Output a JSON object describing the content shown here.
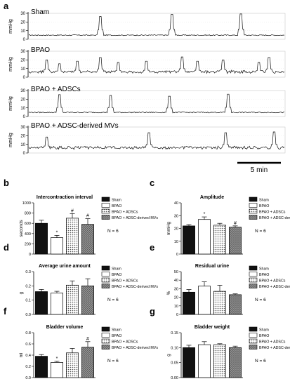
{
  "panel_a": {
    "letter": "a",
    "ylabel": "mmHg",
    "scale_bar_label": "5 min",
    "traces": [
      {
        "label": "Sham",
        "ticks": [
          "30",
          "20",
          "10",
          "0"
        ]
      },
      {
        "label": "BPAO",
        "ticks": [
          "30",
          "20",
          "10",
          "0"
        ]
      },
      {
        "label": "BPAO + ADSCs",
        "ticks": [
          "30",
          "20",
          "10",
          "0"
        ]
      },
      {
        "label": "BPAO + ADSC-derived MVs",
        "ticks": [
          "30",
          "20",
          "10",
          "0"
        ]
      }
    ]
  },
  "legend_entries": [
    "Sham",
    "BPAO",
    "BPAO + ADSCs",
    "BPAO + ADSC-derived MVs"
  ],
  "fills": [
    "#111111",
    "#ffffff",
    "#d0d0d0",
    "#8a8a8a"
  ],
  "patterns": [
    "solid",
    "solid",
    "dots",
    "crosshatch"
  ],
  "chart_data": [
    {
      "type": "bar",
      "panel": "b",
      "title": "Intercontraction interval",
      "ylabel": "seconds",
      "categories": [
        "Sham",
        "BPAO",
        "BPAO + ADSCs",
        "BPAO + ADSC-derived MVs"
      ],
      "values": [
        600,
        320,
        700,
        580
      ],
      "errors": [
        60,
        45,
        90,
        110
      ],
      "ylim": [
        0,
        1000
      ],
      "yticks": [
        "0",
        "200",
        "400",
        "600",
        "800",
        "1000"
      ],
      "markers": [
        "",
        "*",
        "#",
        "#"
      ],
      "n_label": "N = 6"
    },
    {
      "type": "bar",
      "panel": "c",
      "title": "Amplitude",
      "ylabel": "mmHg",
      "categories": [
        "Sham",
        "BPAO",
        "BPAO + ADSCs",
        "BPAO + ADSC-derived MVs"
      ],
      "values": [
        22,
        27,
        22.5,
        21
      ],
      "errors": [
        1,
        2,
        1.5,
        1
      ],
      "ylim": [
        0,
        40
      ],
      "yticks": [
        "0",
        "10",
        "20",
        "30",
        "40"
      ],
      "markers": [
        "",
        "*",
        "",
        "#"
      ],
      "n_label": "N = 6"
    },
    {
      "type": "bar",
      "panel": "d",
      "title": "Average urine amount",
      "ylabel": "g",
      "categories": [
        "Sham",
        "BPAO",
        "BPAO + ADSCs",
        "BPAO + ADSC-derived MVs"
      ],
      "values": [
        0.16,
        0.15,
        0.205,
        0.2
      ],
      "errors": [
        0.015,
        0.012,
        0.03,
        0.05
      ],
      "ylim": [
        0,
        0.3
      ],
      "yticks": [
        "0.0",
        "0.1",
        "0.2",
        "0.3"
      ],
      "markers": [
        "",
        "",
        "",
        ""
      ],
      "n_label": "N = 6"
    },
    {
      "type": "bar",
      "panel": "e",
      "title": "Residual urine",
      "ylabel": "%",
      "categories": [
        "Sham",
        "BPAO",
        "BPAO + ADSCs",
        "BPAO + ADSC-derived MVs"
      ],
      "values": [
        26,
        33,
        27,
        23
      ],
      "errors": [
        3,
        5,
        7,
        1
      ],
      "ylim": [
        0,
        50
      ],
      "yticks": [
        "0",
        "10",
        "20",
        "30",
        "40",
        "50"
      ],
      "markers": [
        "",
        "",
        "",
        ""
      ],
      "n_label": "N = 6"
    },
    {
      "type": "bar",
      "panel": "f",
      "title": "Bladder volume",
      "ylabel": "ml",
      "categories": [
        "Sham",
        "BPAO",
        "BPAO + ADSCs",
        "BPAO + ADSC-derived MVs"
      ],
      "values": [
        0.38,
        0.27,
        0.44,
        0.54
      ],
      "errors": [
        0.03,
        0.02,
        0.08,
        0.1
      ],
      "ylim": [
        0,
        0.8
      ],
      "yticks": [
        "0.0",
        "0.2",
        "0.4",
        "0.6",
        "0.8"
      ],
      "markers": [
        "",
        "*",
        "",
        "#"
      ],
      "n_label": "N = 6"
    },
    {
      "type": "bar",
      "panel": "g",
      "title": "Bladder weight",
      "ylabel": "g",
      "categories": [
        "Sham",
        "BPAO",
        "BPAO + ADSCs",
        "BPAO + ADSC-derived MVs"
      ],
      "values": [
        0.1,
        0.11,
        0.11,
        0.1
      ],
      "errors": [
        0.008,
        0.01,
        0.003,
        0.005
      ],
      "ylim": [
        0,
        0.15
      ],
      "yticks": [
        "0.00",
        "0.05",
        "0.10",
        "0.15"
      ],
      "markers": [
        "",
        "",
        "",
        ""
      ],
      "n_label": "N = 6"
    }
  ]
}
